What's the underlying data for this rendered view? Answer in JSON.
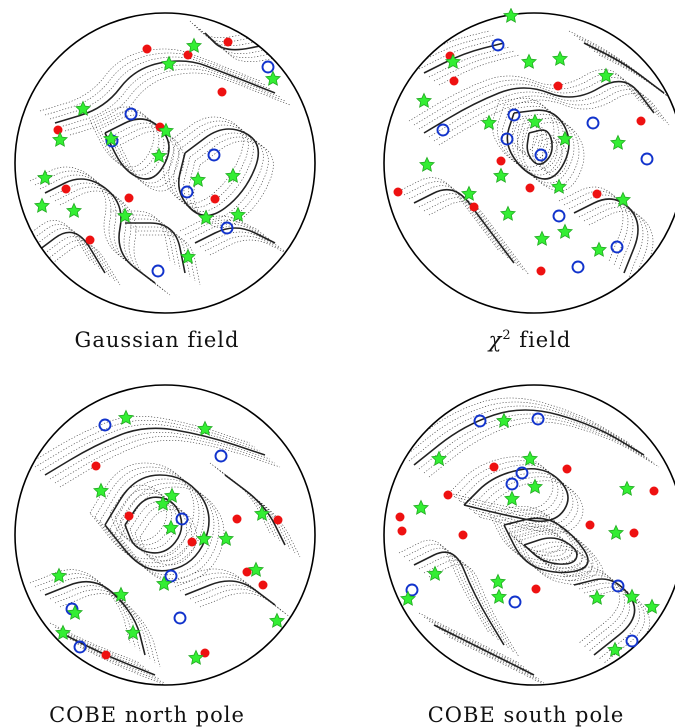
{
  "panels": [
    {
      "id": "gaussian",
      "caption": "Gaussian field",
      "contours": [
        [
          [
            -110,
            -40
          ],
          [
            -60,
            -55
          ],
          [
            -30,
            -95
          ],
          [
            20,
            -105
          ],
          [
            60,
            -90
          ],
          [
            110,
            -70
          ]
        ],
        [
          [
            -120,
            30
          ],
          [
            -80,
            10
          ],
          [
            -40,
            40
          ],
          [
            -50,
            90
          ],
          [
            -10,
            120
          ]
        ],
        [
          [
            -60,
            -30
          ],
          [
            -20,
            -50
          ],
          [
            10,
            -20
          ],
          [
            -10,
            20
          ],
          [
            -40,
            10
          ],
          [
            -60,
            -30
          ]
        ],
        [
          [
            20,
            -10
          ],
          [
            60,
            -40
          ],
          [
            100,
            -20
          ],
          [
            80,
            30
          ],
          [
            40,
            60
          ],
          [
            10,
            30
          ],
          [
            20,
            -10
          ]
        ],
        [
          [
            30,
            80
          ],
          [
            70,
            60
          ],
          [
            110,
            80
          ]
        ],
        [
          [
            -130,
            90
          ],
          [
            -90,
            60
          ],
          [
            -60,
            110
          ]
        ],
        [
          [
            40,
            -130
          ],
          [
            60,
            -110
          ],
          [
            110,
            -120
          ]
        ],
        [
          [
            -40,
            60
          ],
          [
            10,
            60
          ],
          [
            20,
            110
          ]
        ]
      ],
      "maxima": [
        [
          63,
          -121
        ],
        [
          -18,
          -114
        ],
        [
          23,
          -108
        ],
        [
          57,
          -71
        ],
        [
          -107,
          -33
        ],
        [
          -99,
          26
        ],
        [
          -36,
          35
        ],
        [
          -75,
          77
        ],
        [
          50,
          36
        ],
        [
          -5,
          -36
        ]
      ],
      "minima": [
        [
          103,
          -96
        ],
        [
          -34,
          -49
        ],
        [
          -53,
          -22
        ],
        [
          49,
          -8
        ],
        [
          22,
          29
        ],
        [
          62,
          65
        ],
        [
          -7,
          108
        ]
      ],
      "saddles": [
        [
          4,
          -99
        ],
        [
          29,
          -117
        ],
        [
          108,
          -84
        ],
        [
          -82,
          -54
        ],
        [
          -105,
          -23
        ],
        [
          -54,
          -24
        ],
        [
          1,
          -32
        ],
        [
          -6,
          -7
        ],
        [
          -120,
          15
        ],
        [
          -123,
          43
        ],
        [
          -91,
          48
        ],
        [
          -40,
          53
        ],
        [
          33,
          17
        ],
        [
          68,
          13
        ],
        [
          73,
          52
        ],
        [
          41,
          55
        ],
        [
          23,
          94
        ]
      ]
    },
    {
      "id": "chi2",
      "caption_symbol": "χ",
      "caption_sup": "2",
      "caption_rest": " field",
      "contours": [
        [
          [
            -110,
            -30
          ],
          [
            -60,
            -60
          ],
          [
            -10,
            -80
          ],
          [
            40,
            -60
          ],
          [
            90,
            -90
          ],
          [
            120,
            -50
          ]
        ],
        [
          [
            -20,
            -50
          ],
          [
            20,
            -55
          ],
          [
            40,
            -20
          ],
          [
            20,
            20
          ],
          [
            -10,
            10
          ],
          [
            -30,
            -20
          ],
          [
            -20,
            -50
          ]
        ],
        [
          [
            -5,
            -30
          ],
          [
            15,
            -35
          ],
          [
            20,
            -10
          ],
          [
            5,
            5
          ],
          [
            -8,
            -10
          ],
          [
            -5,
            -30
          ]
        ],
        [
          [
            -120,
            40
          ],
          [
            -80,
            20
          ],
          [
            -50,
            60
          ],
          [
            -20,
            100
          ]
        ],
        [
          [
            40,
            50
          ],
          [
            80,
            30
          ],
          [
            110,
            60
          ],
          [
            90,
            110
          ]
        ],
        [
          [
            -110,
            -90
          ],
          [
            -70,
            -110
          ],
          [
            -30,
            -120
          ]
        ],
        [
          [
            50,
            -120
          ],
          [
            90,
            -100
          ],
          [
            130,
            -70
          ]
        ]
      ],
      "maxima": [
        [
          -84,
          -107
        ],
        [
          -80,
          -82
        ],
        [
          24,
          -77
        ],
        [
          107,
          -42
        ],
        [
          -33,
          -2
        ],
        [
          -136,
          29
        ],
        [
          -4,
          25
        ],
        [
          -60,
          44
        ],
        [
          63,
          31
        ],
        [
          7,
          108
        ]
      ],
      "minima": [
        [
          -36,
          -118
        ],
        [
          -20,
          -48
        ],
        [
          -27,
          -24
        ],
        [
          7,
          -8
        ],
        [
          59,
          -40
        ],
        [
          -91,
          -33
        ],
        [
          113,
          -4
        ],
        [
          25,
          53
        ],
        [
          83,
          84
        ],
        [
          44,
          104
        ]
      ],
      "saddles": [
        [
          -23,
          -147
        ],
        [
          -81,
          -101
        ],
        [
          -5,
          -101
        ],
        [
          26,
          -104
        ],
        [
          72,
          -87
        ],
        [
          -110,
          -62
        ],
        [
          -45,
          -40
        ],
        [
          1,
          -41
        ],
        [
          31,
          -24
        ],
        [
          84,
          -20
        ],
        [
          -107,
          2
        ],
        [
          -33,
          13
        ],
        [
          25,
          24
        ],
        [
          -65,
          31
        ],
        [
          -26,
          51
        ],
        [
          89,
          37
        ],
        [
          8,
          76
        ],
        [
          31,
          69
        ],
        [
          65,
          87
        ]
      ]
    },
    {
      "id": "cobe-north",
      "caption": "COBE north pole",
      "contours": [
        [
          [
            -120,
            -60
          ],
          [
            -70,
            -90
          ],
          [
            -20,
            -110
          ],
          [
            40,
            -100
          ],
          [
            100,
            -80
          ]
        ],
        [
          [
            -60,
            -10
          ],
          [
            -30,
            -60
          ],
          [
            20,
            -60
          ],
          [
            50,
            -20
          ],
          [
            30,
            30
          ],
          [
            -20,
            40
          ],
          [
            -60,
            -10
          ]
        ],
        [
          [
            -40,
            -10
          ],
          [
            -20,
            -40
          ],
          [
            10,
            -35
          ],
          [
            20,
            -5
          ],
          [
            0,
            20
          ],
          [
            -30,
            15
          ],
          [
            -40,
            -10
          ]
        ],
        [
          [
            -120,
            60
          ],
          [
            -70,
            40
          ],
          [
            -30,
            80
          ],
          [
            -20,
            120
          ]
        ],
        [
          [
            20,
            60
          ],
          [
            70,
            40
          ],
          [
            110,
            70
          ]
        ],
        [
          [
            60,
            -60
          ],
          [
            100,
            -30
          ],
          [
            120,
            10
          ]
        ],
        [
          [
            -100,
            100
          ],
          [
            -60,
            120
          ],
          [
            -10,
            140
          ]
        ]
      ],
      "maxima": [
        [
          -69,
          -69
        ],
        [
          -36,
          -19
        ],
        [
          72,
          -16
        ],
        [
          113,
          -15
        ],
        [
          27,
          7
        ],
        [
          82,
          37
        ],
        [
          98,
          50
        ],
        [
          -59,
          120
        ],
        [
          40,
          118
        ]
      ],
      "minima": [
        [
          -60,
          -110
        ],
        [
          56,
          -79
        ],
        [
          17,
          -16
        ],
        [
          6,
          41
        ],
        [
          -93,
          74
        ],
        [
          15,
          83
        ],
        [
          -85,
          112
        ]
      ],
      "saddles": [
        [
          -39,
          -117
        ],
        [
          40,
          -106
        ],
        [
          -64,
          -44
        ],
        [
          7,
          -39
        ],
        [
          6,
          -7
        ],
        [
          -2,
          -31
        ],
        [
          97,
          -21
        ],
        [
          39,
          4
        ],
        [
          61,
          4
        ],
        [
          -106,
          41
        ],
        [
          91,
          35
        ],
        [
          -1,
          49
        ],
        [
          -44,
          60
        ],
        [
          -90,
          78
        ],
        [
          -102,
          98
        ],
        [
          112,
          86
        ],
        [
          -32,
          98
        ],
        [
          31,
          123
        ]
      ]
    },
    {
      "id": "cobe-south",
      "caption": "COBE south pole",
      "contours": [
        [
          [
            -120,
            -70
          ],
          [
            -70,
            -110
          ],
          [
            -10,
            -130
          ],
          [
            60,
            -110
          ],
          [
            110,
            -80
          ]
        ],
        [
          [
            -70,
            -30
          ],
          [
            -40,
            -60
          ],
          [
            10,
            -70
          ],
          [
            40,
            -40
          ],
          [
            20,
            -10
          ],
          [
            -30,
            -20
          ],
          [
            -70,
            -30
          ]
        ],
        [
          [
            -30,
            -10
          ],
          [
            10,
            -20
          ],
          [
            40,
            0
          ],
          [
            60,
            30
          ],
          [
            30,
            40
          ],
          [
            -10,
            30
          ],
          [
            -30,
            -10
          ]
        ],
        [
          [
            -10,
            10
          ],
          [
            20,
            0
          ],
          [
            45,
            15
          ],
          [
            40,
            30
          ],
          [
            10,
            28
          ],
          [
            -10,
            10
          ]
        ],
        [
          [
            -120,
            30
          ],
          [
            -80,
            10
          ],
          [
            -60,
            60
          ],
          [
            -30,
            110
          ]
        ],
        [
          [
            40,
            50
          ],
          [
            80,
            40
          ],
          [
            110,
            80
          ],
          [
            60,
            120
          ]
        ],
        [
          [
            -100,
            90
          ],
          [
            -60,
            110
          ],
          [
            0,
            140
          ]
        ]
      ],
      "maxima": [
        [
          -40,
          -68
        ],
        [
          33,
          -66
        ],
        [
          -86,
          -40
        ],
        [
          120,
          -44
        ],
        [
          -132,
          -4
        ],
        [
          56,
          -10
        ],
        [
          100,
          -2
        ],
        [
          2,
          54
        ],
        [
          -134,
          -18
        ],
        [
          -71,
          0
        ]
      ],
      "minima": [
        [
          -54,
          -114
        ],
        [
          4,
          -116
        ],
        [
          -22,
          -51
        ],
        [
          -12,
          -62
        ],
        [
          -122,
          55
        ],
        [
          -19,
          67
        ],
        [
          84,
          51
        ],
        [
          98,
          106
        ]
      ],
      "saddles": [
        [
          -30,
          -114
        ],
        [
          -95,
          -76
        ],
        [
          -22,
          -36
        ],
        [
          1,
          -48
        ],
        [
          -4,
          -76
        ],
        [
          93,
          -46
        ],
        [
          -113,
          -27
        ],
        [
          82,
          -2
        ],
        [
          -99,
          39
        ],
        [
          -36,
          47
        ],
        [
          -35,
          62
        ],
        [
          98,
          62
        ],
        [
          118,
          72
        ],
        [
          -126,
          64
        ],
        [
          63,
          63
        ],
        [
          81,
          115
        ]
      ]
    }
  ]
}
